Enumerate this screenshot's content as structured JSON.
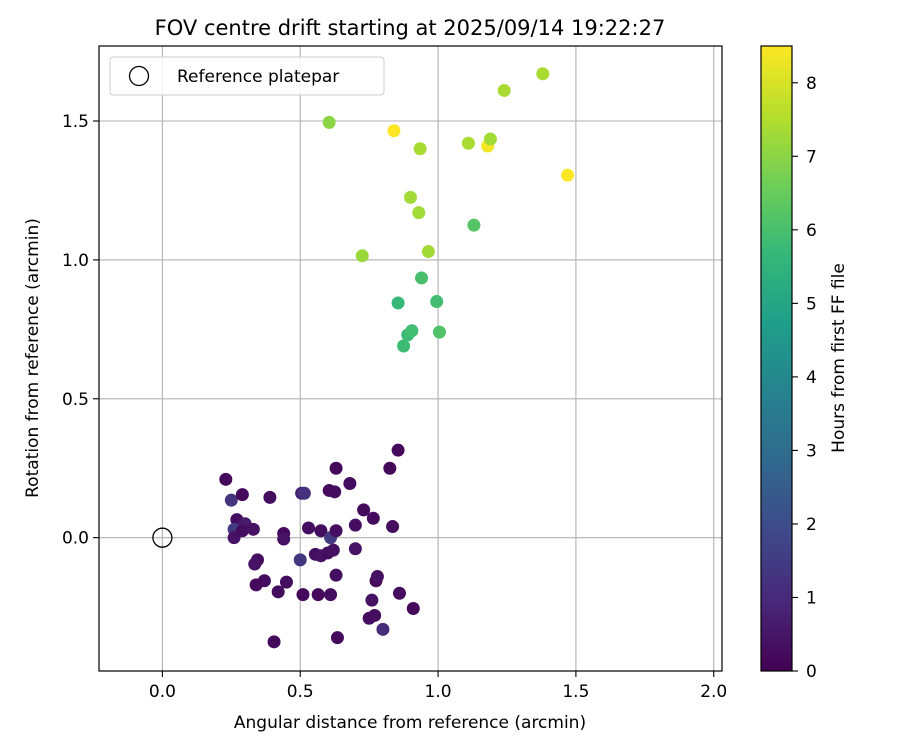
{
  "chart_data": {
    "type": "scatter",
    "title": "FOV centre drift starting at 2025/09/14 19:22:27",
    "xlabel": "Angular distance from reference (arcmin)",
    "ylabel": "Rotation from reference (arcmin)",
    "xlim": [
      -0.23,
      2.03
    ],
    "ylim": [
      -0.48,
      1.77
    ],
    "xticks": [
      0.0,
      0.5,
      1.0,
      1.5,
      2.0
    ],
    "xtick_labels": [
      "0.0",
      "0.5",
      "1.0",
      "1.5",
      "2.0"
    ],
    "yticks": [
      0.0,
      0.5,
      1.0,
      1.5
    ],
    "ytick_labels": [
      "0.0",
      "0.5",
      "1.0",
      "1.5"
    ],
    "grid": true,
    "legend": {
      "position": "top-left",
      "entries": [
        "Reference platepar"
      ]
    },
    "reference_point": {
      "x": 0.0,
      "y": 0.0,
      "label": "Reference platepar"
    },
    "colorbar": {
      "label": "Hours from first FF file",
      "min": 0,
      "max": 8.5,
      "ticks": [
        0,
        1,
        2,
        3,
        4,
        5,
        6,
        7,
        8
      ],
      "tick_labels": [
        "0",
        "1",
        "2",
        "3",
        "4",
        "5",
        "6",
        "7",
        "8"
      ],
      "colormap": [
        "#440154",
        "#482878",
        "#3e4989",
        "#31688e",
        "#26828e",
        "#1f9e89",
        "#35b779",
        "#6ece58",
        "#b5de2b",
        "#fde725"
      ]
    },
    "points": [
      {
        "x": 0.23,
        "y": 0.21,
        "h": 0.2
      },
      {
        "x": 0.25,
        "y": 0.135,
        "h": 1.3
      },
      {
        "x": 0.27,
        "y": 0.065,
        "h": 0.3
      },
      {
        "x": 0.29,
        "y": 0.155,
        "h": 0.2
      },
      {
        "x": 0.26,
        "y": 0.03,
        "h": 1.5
      },
      {
        "x": 0.26,
        "y": 0.0,
        "h": 0.4
      },
      {
        "x": 0.3,
        "y": 0.05,
        "h": 0.6
      },
      {
        "x": 0.29,
        "y": 0.025,
        "h": 0.3
      },
      {
        "x": 0.33,
        "y": 0.03,
        "h": 0.4
      },
      {
        "x": 0.345,
        "y": -0.08,
        "h": 0.3
      },
      {
        "x": 0.335,
        "y": -0.095,
        "h": 0.4
      },
      {
        "x": 0.37,
        "y": -0.155,
        "h": 0.3
      },
      {
        "x": 0.34,
        "y": -0.17,
        "h": 0.2
      },
      {
        "x": 0.39,
        "y": 0.145,
        "h": 0.3
      },
      {
        "x": 0.405,
        "y": -0.375,
        "h": 0.2
      },
      {
        "x": 0.42,
        "y": -0.195,
        "h": 0.3
      },
      {
        "x": 0.44,
        "y": 0.015,
        "h": 0.2
      },
      {
        "x": 0.44,
        "y": -0.005,
        "h": 0.4
      },
      {
        "x": 0.45,
        "y": -0.16,
        "h": 0.3
      },
      {
        "x": 0.5,
        "y": -0.08,
        "h": 1.4
      },
      {
        "x": 0.505,
        "y": 0.16,
        "h": 0.8
      },
      {
        "x": 0.515,
        "y": 0.16,
        "h": 1.2
      },
      {
        "x": 0.51,
        "y": -0.205,
        "h": 0.2
      },
      {
        "x": 0.53,
        "y": 0.035,
        "h": 0.3
      },
      {
        "x": 0.555,
        "y": -0.06,
        "h": 0.3
      },
      {
        "x": 0.565,
        "y": -0.205,
        "h": 0.2
      },
      {
        "x": 0.575,
        "y": -0.065,
        "h": 0.4
      },
      {
        "x": 0.575,
        "y": 0.025,
        "h": 0.3
      },
      {
        "x": 0.6,
        "y": -0.055,
        "h": 0.3
      },
      {
        "x": 0.605,
        "y": 0.17,
        "h": 0.2
      },
      {
        "x": 0.61,
        "y": -0.205,
        "h": 0.3
      },
      {
        "x": 0.61,
        "y": 0.0,
        "h": 1.5
      },
      {
        "x": 0.62,
        "y": -0.045,
        "h": 0.4
      },
      {
        "x": 0.63,
        "y": 0.025,
        "h": 0.3
      },
      {
        "x": 0.625,
        "y": 0.165,
        "h": 0.3
      },
      {
        "x": 0.63,
        "y": 0.25,
        "h": 0.2
      },
      {
        "x": 0.63,
        "y": -0.135,
        "h": 0.3
      },
      {
        "x": 0.635,
        "y": -0.36,
        "h": 0.2
      },
      {
        "x": 0.68,
        "y": 0.195,
        "h": 0.3
      },
      {
        "x": 0.7,
        "y": 0.045,
        "h": 0.3
      },
      {
        "x": 0.7,
        "y": -0.04,
        "h": 0.4
      },
      {
        "x": 0.73,
        "y": 0.1,
        "h": 0.2
      },
      {
        "x": 0.75,
        "y": -0.29,
        "h": 0.3
      },
      {
        "x": 0.76,
        "y": -0.225,
        "h": 0.4
      },
      {
        "x": 0.765,
        "y": 0.07,
        "h": 0.3
      },
      {
        "x": 0.77,
        "y": -0.28,
        "h": 0.3
      },
      {
        "x": 0.775,
        "y": -0.155,
        "h": 0.2
      },
      {
        "x": 0.78,
        "y": -0.14,
        "h": 0.4
      },
      {
        "x": 0.8,
        "y": -0.33,
        "h": 1.1
      },
      {
        "x": 0.825,
        "y": 0.25,
        "h": 0.2
      },
      {
        "x": 0.835,
        "y": 0.04,
        "h": 0.3
      },
      {
        "x": 0.855,
        "y": 0.315,
        "h": 0.2
      },
      {
        "x": 0.86,
        "y": -0.2,
        "h": 0.3
      },
      {
        "x": 0.91,
        "y": -0.255,
        "h": 0.2
      },
      {
        "x": 0.855,
        "y": 0.845,
        "h": 5.7
      },
      {
        "x": 0.875,
        "y": 0.69,
        "h": 5.8
      },
      {
        "x": 0.89,
        "y": 0.73,
        "h": 5.8
      },
      {
        "x": 0.905,
        "y": 0.745,
        "h": 5.9
      },
      {
        "x": 0.94,
        "y": 0.935,
        "h": 6.0
      },
      {
        "x": 0.995,
        "y": 0.85,
        "h": 5.9
      },
      {
        "x": 1.005,
        "y": 0.74,
        "h": 6.1
      },
      {
        "x": 1.13,
        "y": 1.125,
        "h": 6.2
      },
      {
        "x": 0.725,
        "y": 1.015,
        "h": 7.2
      },
      {
        "x": 0.605,
        "y": 1.495,
        "h": 7.0
      },
      {
        "x": 0.84,
        "y": 1.465,
        "h": 8.5
      },
      {
        "x": 0.9,
        "y": 1.225,
        "h": 7.3
      },
      {
        "x": 0.93,
        "y": 1.17,
        "h": 7.3
      },
      {
        "x": 0.935,
        "y": 1.4,
        "h": 7.4
      },
      {
        "x": 0.965,
        "y": 1.03,
        "h": 7.3
      },
      {
        "x": 1.11,
        "y": 1.42,
        "h": 7.4
      },
      {
        "x": 1.18,
        "y": 1.41,
        "h": 8.4
      },
      {
        "x": 1.19,
        "y": 1.435,
        "h": 7.3
      },
      {
        "x": 1.24,
        "y": 1.61,
        "h": 7.4
      },
      {
        "x": 1.38,
        "y": 1.67,
        "h": 7.4
      },
      {
        "x": 1.47,
        "y": 1.305,
        "h": 8.5
      }
    ]
  }
}
